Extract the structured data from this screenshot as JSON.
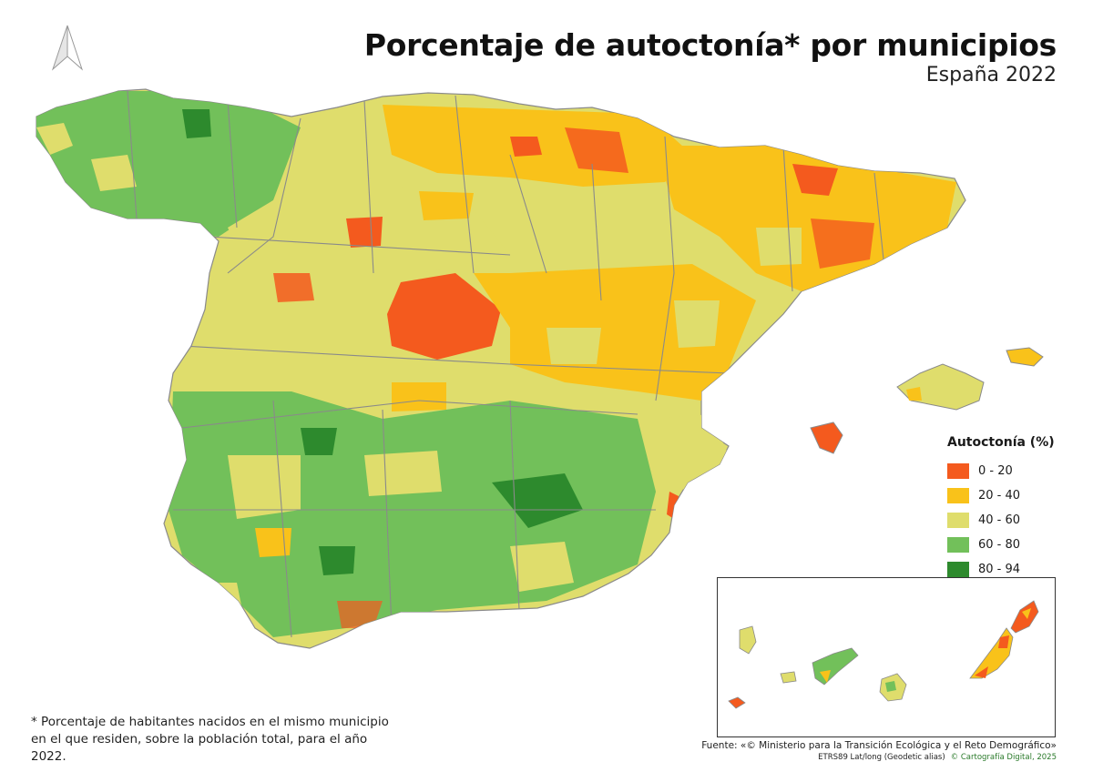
{
  "title": "Porcentaje de autoctonía* por municipios",
  "subtitle": "España 2022",
  "legend": {
    "title": "Autoctonía (%)",
    "items": [
      {
        "label": "0 - 20",
        "color": "#f45a1e"
      },
      {
        "label": "20 - 40",
        "color": "#f9c21a"
      },
      {
        "label": "40 - 60",
        "color": "#dfdd6c"
      },
      {
        "label": "60 - 80",
        "color": "#72c05a"
      },
      {
        "label": "80 - 94",
        "color": "#2d8a2d"
      }
    ]
  },
  "footnote": "* Porcentaje de habitantes nacidos en el mismo municipio en el que residen, sobre la población total, para el año 2022.",
  "source": "Fuente: «© Ministerio para la Transición Ecológica y el Reto Demográfico»",
  "crs": "ETRS89   Lat/long (Geodetic alias)",
  "credit": "© Cartografía Digital, 2025",
  "icons": {
    "north_arrow": "north-arrow-icon"
  }
}
